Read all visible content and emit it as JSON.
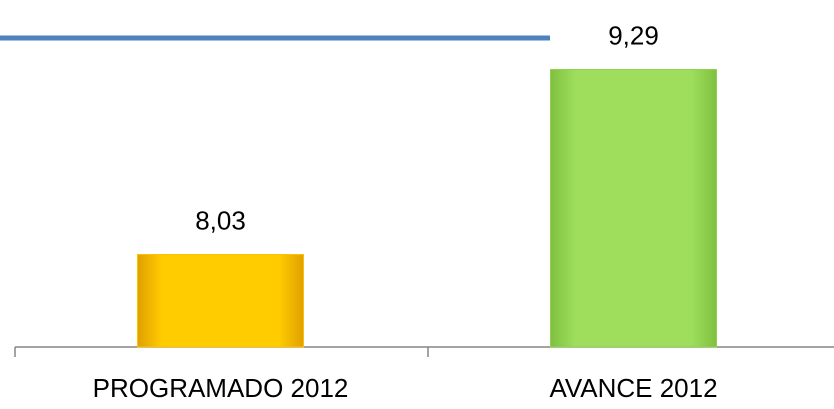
{
  "chart_data": {
    "type": "bar",
    "categories": [
      "PROGRAMADO 2012",
      "AVANCE 2012"
    ],
    "values": [
      8.03,
      9.29
    ],
    "value_labels": [
      "8,03",
      "9,29"
    ],
    "colors": [
      "#ffc000",
      "#92d050"
    ],
    "ylim": [
      7.4,
      9.6
    ]
  }
}
